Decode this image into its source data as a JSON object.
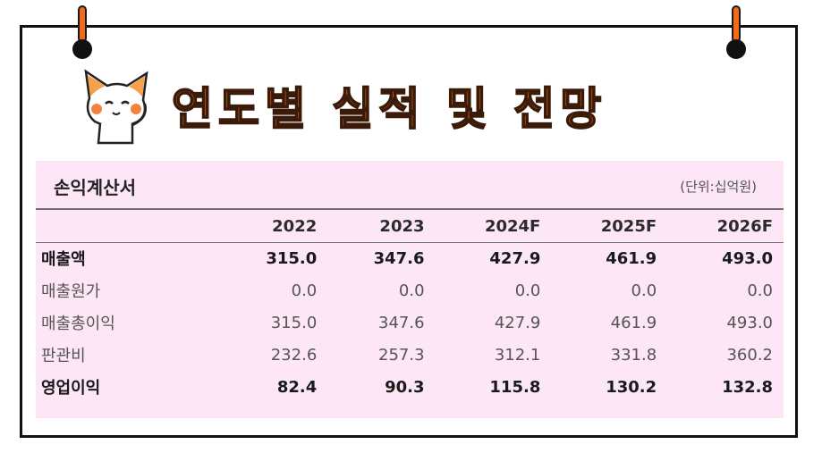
{
  "title": "연도별 실적 및 전망",
  "panel_title": "손익계산서",
  "unit": "(단위:십억원)",
  "columns": [
    "2022",
    "2023",
    "2024F",
    "2025F",
    "2026F"
  ],
  "rows": [
    {
      "label": "매출액",
      "bold": true,
      "values": [
        "315.0",
        "347.6",
        "427.9",
        "461.9",
        "493.0"
      ]
    },
    {
      "label": "매출원가",
      "bold": false,
      "values": [
        "0.0",
        "0.0",
        "0.0",
        "0.0",
        "0.0"
      ]
    },
    {
      "label": "매출총이익",
      "bold": false,
      "values": [
        "315.0",
        "347.6",
        "427.9",
        "461.9",
        "493.0"
      ]
    },
    {
      "label": "판관비",
      "bold": false,
      "values": [
        "232.6",
        "257.3",
        "312.1",
        "331.8",
        "360.2"
      ]
    },
    {
      "label": "영업이익",
      "bold": true,
      "values": [
        "82.4",
        "90.3",
        "115.8",
        "130.2",
        "132.8"
      ]
    }
  ],
  "colors": {
    "accent": "#f26b1d",
    "panel": "#fde6f5",
    "border": "#111111"
  },
  "icons": [
    "pin-icon",
    "cat-mascot-icon"
  ]
}
